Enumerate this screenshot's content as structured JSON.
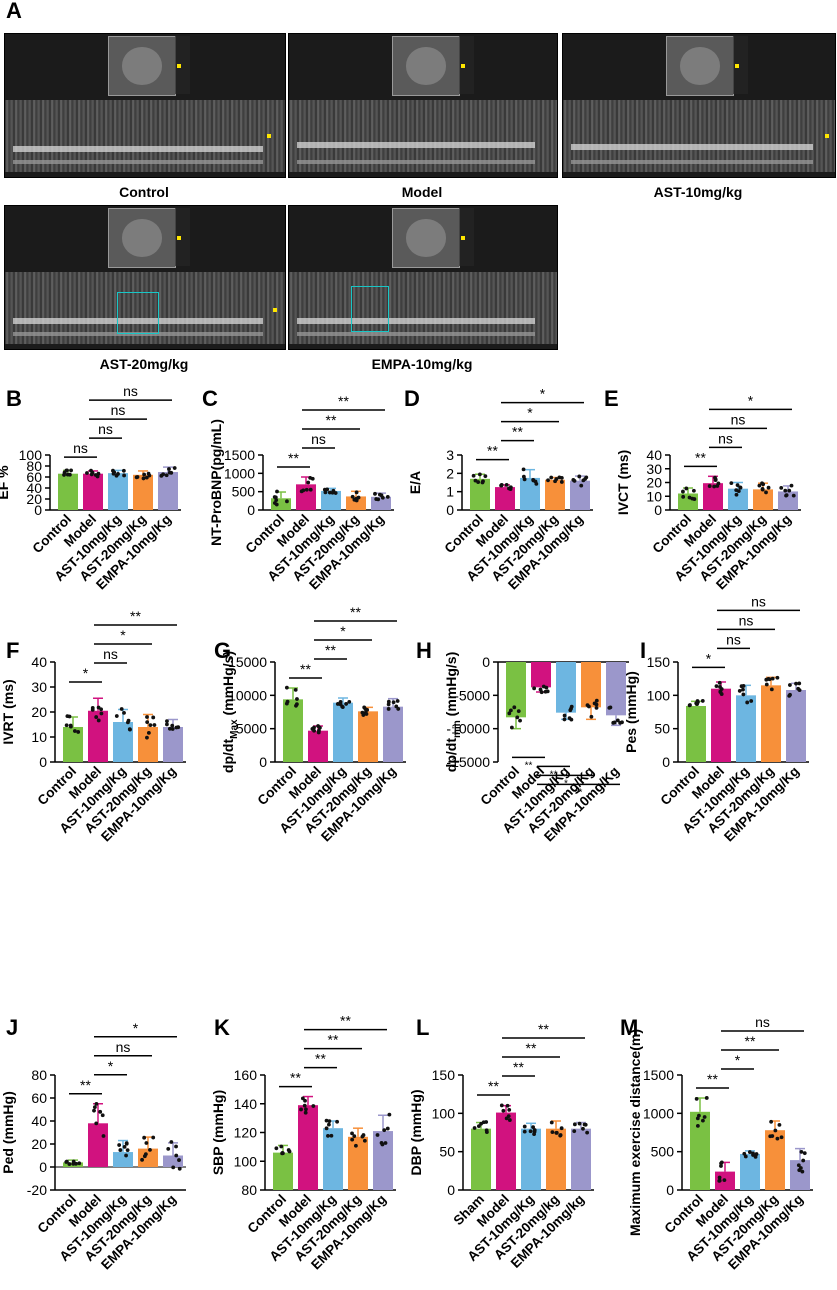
{
  "panel_a": {
    "letter": "A",
    "captions": [
      "Control",
      "Model",
      "AST-10mg/kg",
      "AST-20mg/kg",
      "EMPA-10mg/kg"
    ]
  },
  "colors": [
    "#7ac143",
    "#d1127f",
    "#6db6e1",
    "#f7903a",
    "#9b97cb"
  ],
  "chart_data": [
    {
      "id": "B",
      "type": "bar",
      "categories": [
        "Control",
        "Model",
        "AST-10mg/Kg",
        "AST-20mg/Kg",
        "EMPA-10mg/Kg"
      ],
      "ylabel": "EF %",
      "ylim": [
        0,
        100
      ],
      "yticks": [
        0,
        20,
        40,
        60,
        80,
        100
      ],
      "values": [
        66,
        66,
        67,
        64,
        69
      ],
      "errors": [
        6,
        5,
        5,
        7,
        9
      ],
      "sig": [
        {
          "a": 0,
          "b": 1,
          "label": "ns"
        },
        {
          "a": 1,
          "b": 2,
          "label": "ns"
        },
        {
          "a": 1,
          "b": 3,
          "label": "ns"
        },
        {
          "a": 1,
          "b": 4,
          "label": "ns"
        }
      ]
    },
    {
      "id": "C",
      "type": "bar",
      "categories": [
        "Control",
        "Model",
        "AST-10mg/Kg",
        "AST-20mg/Kg",
        "EMPA-10mg/Kg"
      ],
      "ylabel": "NT-ProBNP(pg/mL)",
      "ylim": [
        0,
        1500
      ],
      "yticks": [
        0,
        500,
        1000,
        1500
      ],
      "values": [
        320,
        700,
        520,
        370,
        360
      ],
      "errors": [
        170,
        200,
        70,
        140,
        100
      ],
      "sig": [
        {
          "a": 0,
          "b": 1,
          "label": "**"
        },
        {
          "a": 1,
          "b": 2,
          "label": "ns"
        },
        {
          "a": 1,
          "b": 3,
          "label": "**"
        },
        {
          "a": 1,
          "b": 4,
          "label": "**"
        }
      ]
    },
    {
      "id": "D",
      "type": "bar",
      "categories": [
        "Control",
        "Model",
        "AST-10mg/Kg",
        "AST-20mg/Kg",
        "EMPA-10mg/Kg"
      ],
      "ylabel": "E/A",
      "ylim": [
        0,
        3
      ],
      "yticks": [
        0,
        1,
        2,
        3
      ],
      "values": [
        1.7,
        1.25,
        1.75,
        1.65,
        1.6
      ],
      "errors": [
        0.25,
        0.12,
        0.45,
        0.12,
        0.25
      ],
      "sig": [
        {
          "a": 0,
          "b": 1,
          "label": "**"
        },
        {
          "a": 1,
          "b": 2,
          "label": "**"
        },
        {
          "a": 1,
          "b": 3,
          "label": "*"
        },
        {
          "a": 1,
          "b": 4,
          "label": "*"
        }
      ]
    },
    {
      "id": "E",
      "type": "bar",
      "categories": [
        "Control",
        "Model",
        "AST-10mg/Kg",
        "AST-20mg/Kg",
        "EMPA-10mg/Kg"
      ],
      "ylabel": "IVCT (ms)",
      "ylim": [
        0,
        40
      ],
      "yticks": [
        0,
        10,
        20,
        30,
        40
      ],
      "values": [
        12,
        19.5,
        15.5,
        15,
        13.5
      ],
      "errors": [
        4,
        5,
        4.5,
        4.5,
        4
      ],
      "sig": [
        {
          "a": 0,
          "b": 1,
          "label": "**"
        },
        {
          "a": 1,
          "b": 2,
          "label": "ns"
        },
        {
          "a": 1,
          "b": 3,
          "label": "ns"
        },
        {
          "a": 1,
          "b": 4,
          "label": "*"
        }
      ]
    },
    {
      "id": "F",
      "type": "bar",
      "categories": [
        "Control",
        "Model",
        "AST-10mg/Kg",
        "AST-20mg/Kg",
        "EMPA-10mg/Kg"
      ],
      "ylabel": "IVRT (ms)",
      "ylim": [
        0,
        40
      ],
      "yticks": [
        0,
        10,
        20,
        30,
        40
      ],
      "values": [
        14,
        20.5,
        16,
        14,
        14
      ],
      "errors": [
        4,
        5,
        5,
        5,
        3
      ],
      "sig": [
        {
          "a": 0,
          "b": 1,
          "label": "*"
        },
        {
          "a": 1,
          "b": 2,
          "label": "ns"
        },
        {
          "a": 1,
          "b": 3,
          "label": "*"
        },
        {
          "a": 1,
          "b": 4,
          "label": "**"
        }
      ]
    },
    {
      "id": "G",
      "type": "bar",
      "categories": [
        "Control",
        "Model",
        "AST-10mg/Kg",
        "AST-20mg/Kg",
        "EMPA-10mg/Kg"
      ],
      "ylabel": "dp/dt",
      "ylabel_sub": "Max",
      "ylabel_unit": " (mmHg/s)",
      "ylim": [
        0,
        15000
      ],
      "yticks": [
        0,
        5000,
        10000,
        15000
      ],
      "values": [
        9400,
        4700,
        8900,
        7600,
        8300
      ],
      "errors": [
        1700,
        700,
        700,
        600,
        1200
      ],
      "sig": [
        {
          "a": 0,
          "b": 1,
          "label": "**"
        },
        {
          "a": 1,
          "b": 2,
          "label": "**"
        },
        {
          "a": 1,
          "b": 3,
          "label": "*"
        },
        {
          "a": 1,
          "b": 4,
          "label": "**"
        }
      ]
    },
    {
      "id": "H",
      "type": "bar",
      "negative": true,
      "categories": [
        "Control",
        "Model",
        "AST-10mg/Kg",
        "AST-20mg/Kg",
        "EMPA-10mg/Kg"
      ],
      "ylabel": "dp/dt",
      "ylabel_sub": "min",
      "ylabel_unit": " (mmHg/s)",
      "ylim": [
        -15000,
        0
      ],
      "yticks": [
        -15000,
        -10000,
        -5000,
        0
      ],
      "values": [
        -8300,
        -3800,
        -7600,
        -6800,
        -8000
      ],
      "errors": [
        1700,
        700,
        1000,
        1800,
        1500
      ],
      "sig": [
        {
          "a": 0,
          "b": 1,
          "label": "**"
        },
        {
          "a": 1,
          "b": 2,
          "label": "**"
        },
        {
          "a": 1,
          "b": 3,
          "label": "*"
        },
        {
          "a": 1,
          "b": 4,
          "label": "**"
        }
      ]
    },
    {
      "id": "I",
      "type": "bar",
      "categories": [
        "Control",
        "Model",
        "AST-10mg/Kg",
        "AST-20mg/Kg",
        "EMPA-10mg/Kg"
      ],
      "ylabel": "Pes (mmHg)",
      "ylim": [
        0,
        150
      ],
      "yticks": [
        0,
        50,
        100,
        150
      ],
      "values": [
        84,
        110,
        100,
        115,
        108
      ],
      "errors": [
        7,
        10,
        15,
        12,
        10
      ],
      "sig": [
        {
          "a": 0,
          "b": 1,
          "label": "*"
        },
        {
          "a": 1,
          "b": 2,
          "label": "ns"
        },
        {
          "a": 1,
          "b": 3,
          "label": "ns"
        },
        {
          "a": 1,
          "b": 4,
          "label": "ns"
        }
      ]
    },
    {
      "id": "J",
      "type": "bar",
      "categories": [
        "Control",
        "Model",
        "AST-10mg/Kg",
        "AST-20mg/Kg",
        "EMPA-10mg/Kg"
      ],
      "ylabel": "Ped (mmHg)",
      "ylim": [
        -20,
        80
      ],
      "yticks": [
        -20,
        0,
        20,
        40,
        60,
        80
      ],
      "values": [
        4,
        38,
        13,
        16,
        10
      ],
      "errors": [
        2,
        17,
        10,
        10,
        11
      ],
      "sig": [
        {
          "a": 0,
          "b": 1,
          "label": "**"
        },
        {
          "a": 1,
          "b": 2,
          "label": "*"
        },
        {
          "a": 1,
          "b": 3,
          "label": "ns"
        },
        {
          "a": 1,
          "b": 4,
          "label": "*"
        }
      ]
    },
    {
      "id": "K",
      "type": "bar",
      "ymin": 80,
      "categories": [
        "Control",
        "Model",
        "AST-10mg/Kg",
        "AST-20mg/Kg",
        "EMPA-10mg/Kg"
      ],
      "ylabel": "SBP (mmHg)",
      "ylim": [
        80,
        160
      ],
      "yticks": [
        80,
        100,
        120,
        140,
        160
      ],
      "values": [
        106,
        139,
        123,
        117,
        121
      ],
      "errors": [
        5,
        6,
        5,
        6,
        11
      ],
      "sig": [
        {
          "a": 0,
          "b": 1,
          "label": "**"
        },
        {
          "a": 1,
          "b": 2,
          "label": "**"
        },
        {
          "a": 1,
          "b": 3,
          "label": "**"
        },
        {
          "a": 1,
          "b": 4,
          "label": "**"
        }
      ]
    },
    {
      "id": "L",
      "type": "bar",
      "categories": [
        "Sham",
        "Model",
        "AST-10mg/Kg",
        "AST-20mg/kg",
        "EMPA-10mg/kg"
      ],
      "ylabel": "DBP (mmHg)",
      "ylim": [
        0,
        150
      ],
      "yticks": [
        0,
        50,
        100,
        150
      ],
      "values": [
        80,
        101,
        80,
        80,
        80
      ],
      "errors": [
        8,
        9,
        7,
        10,
        8
      ],
      "sig": [
        {
          "a": 0,
          "b": 1,
          "label": "**"
        },
        {
          "a": 1,
          "b": 2,
          "label": "**"
        },
        {
          "a": 1,
          "b": 3,
          "label": "**"
        },
        {
          "a": 1,
          "b": 4,
          "label": "**"
        }
      ]
    },
    {
      "id": "M",
      "type": "bar",
      "categories": [
        "Control",
        "Model",
        "AST-10mg/Kg",
        "AST-20mg/Kg",
        "EMPA-10mg/Kg"
      ],
      "ylabel": "Maximum  exercise distance(m)",
      "ylim": [
        0,
        1500
      ],
      "yticks": [
        0,
        500,
        1000,
        1500
      ],
      "values": [
        1020,
        240,
        470,
        780,
        390
      ],
      "errors": [
        180,
        120,
        40,
        120,
        150
      ],
      "sig": [
        {
          "a": 0,
          "b": 1,
          "label": "**"
        },
        {
          "a": 1,
          "b": 2,
          "label": "*"
        },
        {
          "a": 1,
          "b": 3,
          "label": "**"
        },
        {
          "a": 1,
          "b": 4,
          "label": "ns"
        }
      ]
    }
  ]
}
